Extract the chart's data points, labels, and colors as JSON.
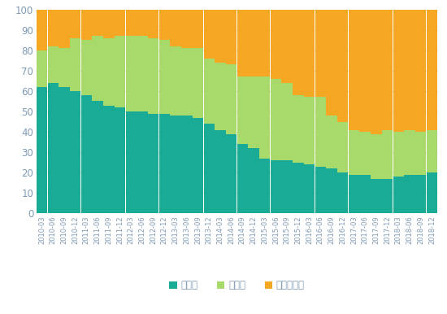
{
  "labels": [
    "2010-03",
    "2010-06",
    "2010-09",
    "2010-12",
    "2011-03",
    "2011-06",
    "2011-09",
    "2011-12",
    "2012-03",
    "2012-06",
    "2012-09",
    "2012-12",
    "2013-03",
    "2013-06",
    "2013-09",
    "2013-12",
    "2014-03",
    "2014-06",
    "2014-09",
    "2014-12",
    "2015-03",
    "2015-06",
    "2015-09",
    "2015-12",
    "2016-03",
    "2016-06",
    "2016-09",
    "2016-12",
    "2017-03",
    "2017-06",
    "2017-09",
    "2017-12",
    "2018-03",
    "2018-06",
    "2018-09",
    "2018-12"
  ],
  "rongzi": [
    62,
    64,
    62,
    60,
    58,
    55,
    53,
    52,
    50,
    50,
    49,
    49,
    48,
    48,
    47,
    44,
    41,
    39,
    34,
    32,
    27,
    26,
    26,
    25,
    24,
    23,
    22,
    20,
    19,
    19,
    17,
    17,
    18,
    19,
    19,
    20
  ],
  "touzi": [
    18,
    18,
    19,
    26,
    27,
    32,
    33,
    35,
    37,
    37,
    37,
    36,
    34,
    33,
    34,
    32,
    33,
    34,
    33,
    35,
    40,
    40,
    38,
    33,
    33,
    34,
    26,
    25,
    22,
    21,
    22,
    24,
    22,
    22,
    21,
    21
  ],
  "shiwu": [
    20,
    18,
    19,
    14,
    15,
    13,
    14,
    13,
    13,
    13,
    14,
    15,
    18,
    19,
    19,
    24,
    26,
    27,
    33,
    33,
    33,
    34,
    36,
    42,
    43,
    43,
    52,
    55,
    59,
    60,
    61,
    59,
    60,
    59,
    60,
    59
  ],
  "color_rongzi": "#1aab96",
  "color_touzi": "#a8d96b",
  "color_shiwu": "#f5a623",
  "legend_labels": [
    "融资类",
    "投资类",
    "事务管理类"
  ],
  "ylim": [
    0,
    100
  ],
  "yticks": [
    0,
    10,
    20,
    30,
    40,
    50,
    60,
    70,
    80,
    90,
    100
  ],
  "bar_width": 0.98,
  "background_color": "#ffffff",
  "grid_color": "#d8d8d8",
  "tick_color": "#7f9ab5",
  "label_fontsize": 6.0,
  "ytick_fontsize": 8.5,
  "legend_fontsize": 8.5,
  "fig_width": 5.5,
  "fig_height": 3.86,
  "dpi": 100
}
